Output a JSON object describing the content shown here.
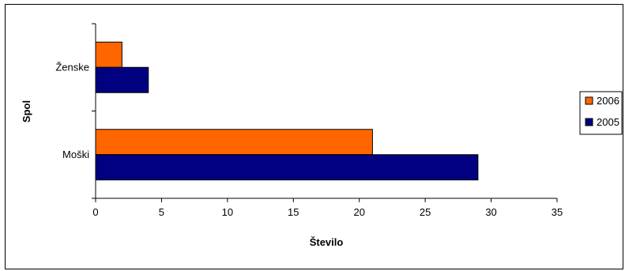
{
  "chart_data": {
    "type": "bar",
    "orientation": "horizontal",
    "categories": [
      "Ženske",
      "Moški"
    ],
    "series": [
      {
        "name": "2006",
        "values": [
          2,
          21
        ],
        "color": "#FF6600"
      },
      {
        "name": "2005",
        "values": [
          4,
          29
        ],
        "color": "#000080"
      }
    ],
    "xlabel": "Število",
    "ylabel": "Spol",
    "xlim": [
      0,
      35
    ],
    "xticks": [
      0,
      5,
      10,
      15,
      20,
      25,
      30,
      35
    ],
    "grid": false,
    "legend_position": "right"
  }
}
